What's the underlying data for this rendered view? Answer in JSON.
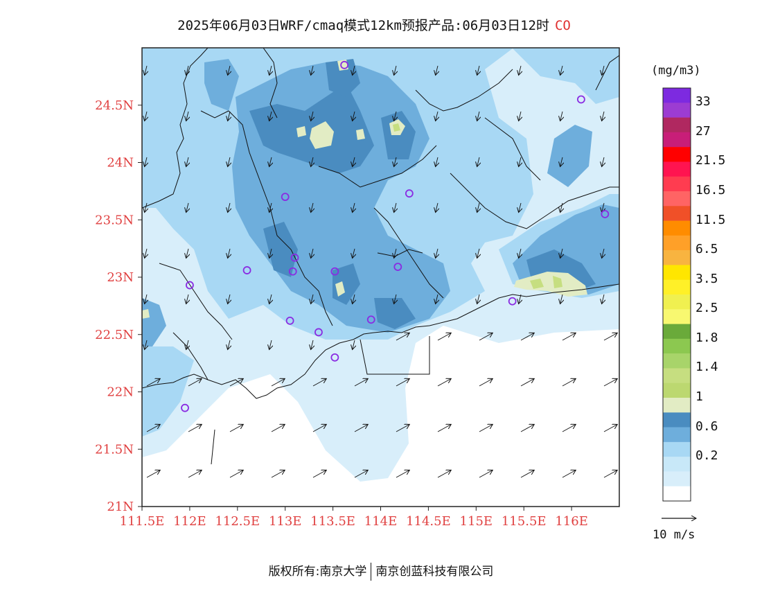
{
  "title": {
    "text": "2025年06月03日WRF/cmaq模式12km预报产品:06月03日12时",
    "pollutant": "CO"
  },
  "units": "(mg/m3)",
  "footer": {
    "left": "版权所有:南京大学",
    "right": "南京创蓝科技有限公司"
  },
  "map": {
    "lat_labels": [
      "24.5N",
      "24N",
      "23.5N",
      "23N",
      "22.5N",
      "22N",
      "21.5N",
      "21N"
    ],
    "lon_labels": [
      "111.5E",
      "112E",
      "112.5E",
      "113E",
      "113.5E",
      "114E",
      "114.5E",
      "115E",
      "115.5E",
      "116E"
    ],
    "lon_range": [
      111.5,
      116.5
    ],
    "lat_range": [
      21.0,
      25.0
    ],
    "colors": {
      "c0": "#ffffff",
      "c02": "#d8eefa",
      "c06": "#a8d8f4",
      "c08": "#6eaedc",
      "c1": "#4a8cc0",
      "c1p": "#e2ecc4",
      "c12": "#c6de80",
      "coast": "#111111",
      "axis": "#222222",
      "station": "#8a2be2"
    },
    "stations": [
      {
        "lon": 113.62,
        "lat": 24.85
      },
      {
        "lon": 116.1,
        "lat": 24.55
      },
      {
        "lon": 114.3,
        "lat": 23.73
      },
      {
        "lon": 113.0,
        "lat": 23.7
      },
      {
        "lon": 116.35,
        "lat": 23.55
      },
      {
        "lon": 113.1,
        "lat": 23.17
      },
      {
        "lon": 112.6,
        "lat": 23.06
      },
      {
        "lon": 112.0,
        "lat": 22.93
      },
      {
        "lon": 113.08,
        "lat": 23.05
      },
      {
        "lon": 113.52,
        "lat": 23.05
      },
      {
        "lon": 114.18,
        "lat": 23.09
      },
      {
        "lon": 115.38,
        "lat": 22.79
      },
      {
        "lon": 113.05,
        "lat": 22.62
      },
      {
        "lon": 113.35,
        "lat": 22.52
      },
      {
        "lon": 113.9,
        "lat": 22.63
      },
      {
        "lon": 113.52,
        "lat": 22.3
      },
      {
        "lon": 111.95,
        "lat": 21.86
      }
    ],
    "wind": {
      "land": {
        "dx": -0.25,
        "dy": 1.0
      },
      "sea": {
        "dx": 1.0,
        "dy": -0.55
      }
    }
  },
  "legend": {
    "labels": [
      "33",
      "27",
      "21.5",
      "16.5",
      "11.5",
      "6.5",
      "3.5",
      "2.5",
      "1.8",
      "1.4",
      "1",
      "0.6",
      "0.2"
    ],
    "colors": [
      "#7d2ae0",
      "#9c3cd2",
      "#b02860",
      "#c81e78",
      "#ff0000",
      "#ff1450",
      "#ff3c50",
      "#ff6464",
      "#f05028",
      "#ff8c00",
      "#ffa028",
      "#f8b440",
      "#ffe600",
      "#fff028",
      "#f0f050",
      "#f8f870",
      "#6aaa3a",
      "#8cc850",
      "#a8d46a",
      "#c6de80",
      "#bcd870",
      "#e2ecc4",
      "#4a8cc0",
      "#6eaedc",
      "#a8d8f4",
      "#c8e8f8",
      "#d8eefa",
      "#ffffff"
    ]
  },
  "ref_vector": {
    "label": "10 m/s"
  }
}
